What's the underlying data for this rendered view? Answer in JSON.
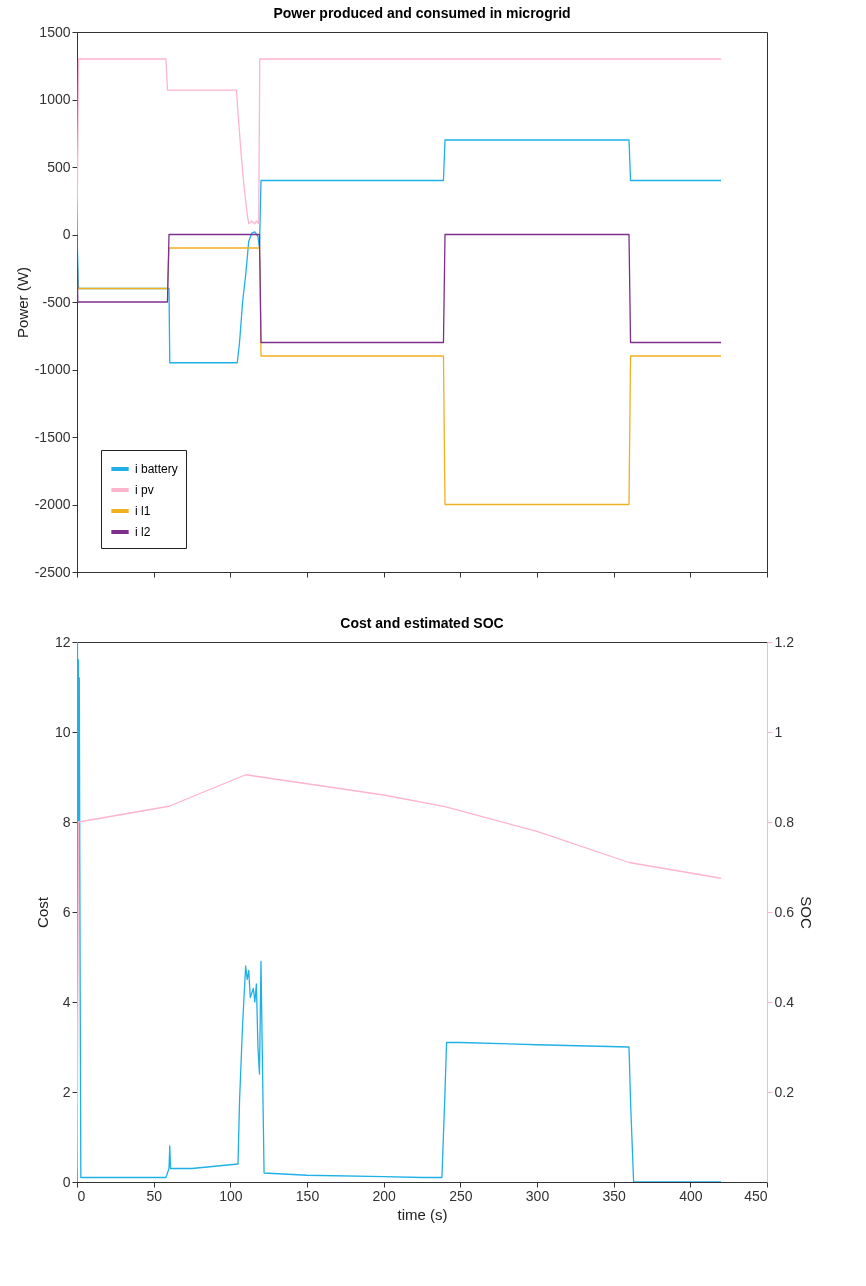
{
  "chart_data": [
    {
      "type": "line",
      "title": "Power produced and consumed in microgrid",
      "ylabel": "Power (W)",
      "xlim": [
        0,
        450
      ],
      "xticks": [
        0,
        50,
        100,
        150,
        200,
        250,
        300,
        350,
        400,
        450
      ],
      "ylim": [
        -2500,
        1500
      ],
      "yticks": [
        -2500,
        -2000,
        -1500,
        -1000,
        -500,
        0,
        500,
        1000,
        1500
      ],
      "tick_labels": "y",
      "legend": "bottom left",
      "grid": false,
      "series": [
        {
          "name": "i battery",
          "color": "#1fb0e8",
          "x": [
            0,
            1,
            60,
            60.5,
            104.5,
            106,
            108,
            110,
            112,
            114,
            116,
            118,
            119,
            120,
            239,
            240,
            360,
            361,
            420
          ],
          "values": [
            0,
            -400,
            -400,
            -950,
            -950,
            -800,
            -500,
            -300,
            -50,
            10,
            20,
            -15,
            -100,
            400,
            400,
            700,
            700,
            400,
            400
          ]
        },
        {
          "name": "i pv",
          "color": "#ffb3cc",
          "x": [
            0,
            1,
            58,
            59,
            104,
            105,
            107,
            109,
            111,
            112,
            114,
            116,
            117,
            118.5,
            119.2,
            420
          ],
          "values": [
            0,
            1300,
            1300,
            1070,
            1070,
            900,
            600,
            350,
            150,
            80,
            100,
            80,
            100,
            80,
            1300,
            1300
          ]
        },
        {
          "name": "i l1",
          "color": "#f0b020",
          "x": [
            0,
            0.5,
            59,
            60,
            119,
            119.5,
            120,
            239,
            240,
            360,
            361,
            420
          ],
          "values": [
            0,
            -400,
            -400,
            -100,
            -100,
            -300,
            -900,
            -900,
            -2000,
            -2000,
            -900,
            -900
          ]
        },
        {
          "name": "i l2",
          "color": "#7e2f8e",
          "x": [
            0,
            0.5,
            59,
            60,
            119,
            120,
            239,
            240,
            360,
            361,
            420
          ],
          "values": [
            0,
            -500,
            -500,
            0,
            0,
            -800,
            -800,
            0,
            0,
            -800,
            -800
          ]
        }
      ]
    },
    {
      "type": "line",
      "title": "Cost and estimated SOC",
      "xlabel": "time (s)",
      "ylabel": "Cost",
      "y2label": "SOC",
      "xlim": [
        0,
        450
      ],
      "xticks": [
        0,
        50,
        100,
        150,
        200,
        250,
        300,
        350,
        400,
        450
      ],
      "ylim": [
        0,
        12
      ],
      "yticks": [
        0,
        2,
        4,
        6,
        8,
        10,
        12
      ],
      "y2lim": [
        0,
        1.2
      ],
      "y2ticks": [
        0.2,
        0.4,
        0.6,
        0.8,
        1,
        1.2
      ],
      "grid": false,
      "series": [
        {
          "color": "#1fb0e8",
          "x": [
            0,
            0.3,
            0.6,
            0.9,
            1.2,
            1.5,
            2,
            2.5,
            58,
            60,
            60.5,
            61,
            62,
            75,
            90,
            105,
            106,
            108,
            110,
            111,
            112,
            113,
            115,
            116,
            117,
            118,
            119,
            120,
            121,
            122,
            150,
            200,
            225,
            238,
            240,
            241,
            250,
            300,
            360,
            361,
            363,
            420
          ],
          "values": [
            0.3,
            12,
            8,
            11.6,
            8,
            11.2,
            5,
            0.1,
            0.1,
            0.3,
            0.8,
            0.3,
            0.3,
            0.3,
            0.35,
            0.4,
            1.8,
            3.5,
            4.8,
            4.5,
            4.7,
            4.1,
            4.3,
            4,
            4.4,
            3,
            2.4,
            4.9,
            2.5,
            0.2,
            0.15,
            0.12,
            0.1,
            0.1,
            2,
            3.1,
            3.1,
            3.05,
            3,
            1.8,
            0,
            0
          ]
        },
        {
          "color": "#ffb3cc",
          "axis": "y2",
          "x": [
            0,
            1,
            60,
            110,
            120,
            150,
            200,
            240,
            300,
            360,
            420
          ],
          "values": [
            0,
            0.8,
            0.835,
            0.905,
            0.9,
            0.885,
            0.86,
            0.834,
            0.779,
            0.71,
            0.675
          ]
        }
      ]
    }
  ]
}
